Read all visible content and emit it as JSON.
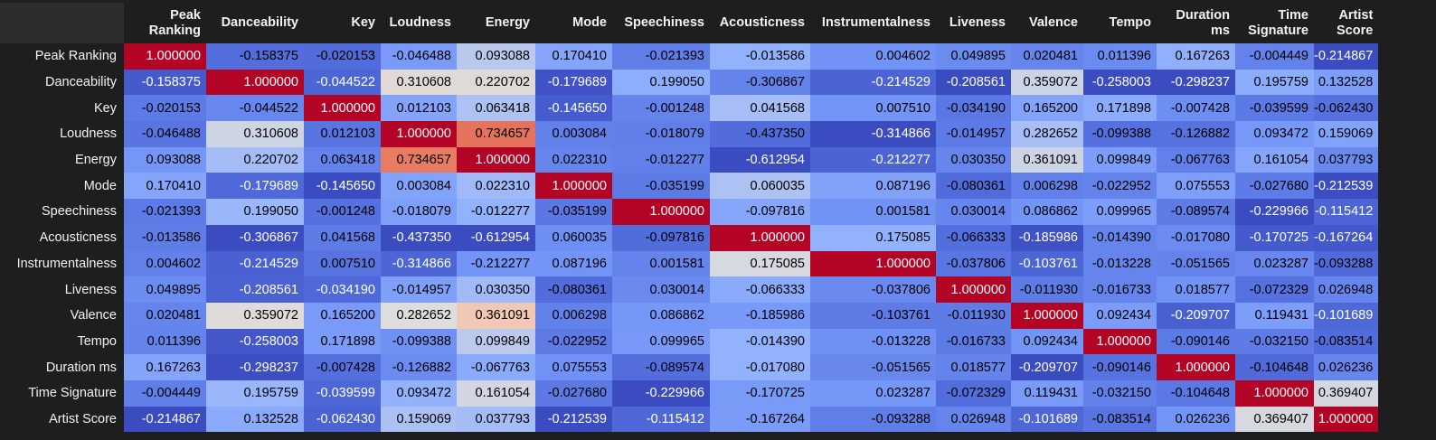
{
  "table": {
    "columns": [
      "Peak Ranking",
      "Danceability",
      "Key",
      "Loudness",
      "Energy",
      "Mode",
      "Speechiness",
      "Acousticness",
      "Instrumentalness",
      "Liveness",
      "Valence",
      "Tempo",
      "Duration ms",
      "Time Signature",
      "Artist Score"
    ],
    "rows": [
      {
        "label": "Peak Ranking",
        "values": [
          "1.000000",
          "-0.158375",
          "-0.020153",
          "-0.046488",
          "0.093088",
          "0.170410",
          "-0.021393",
          "-0.013586",
          "0.004602",
          "0.049895",
          "0.020481",
          "0.011396",
          "0.167263",
          "-0.004449",
          "-0.214867"
        ]
      },
      {
        "label": "Danceability",
        "values": [
          "-0.158375",
          "1.000000",
          "-0.044522",
          "0.310608",
          "0.220702",
          "-0.179689",
          "0.199050",
          "-0.306867",
          "-0.214529",
          "-0.208561",
          "0.359072",
          "-0.258003",
          "-0.298237",
          "0.195759",
          "0.132528"
        ]
      },
      {
        "label": "Key",
        "values": [
          "-0.020153",
          "-0.044522",
          "1.000000",
          "0.012103",
          "0.063418",
          "-0.145650",
          "-0.001248",
          "0.041568",
          "0.007510",
          "-0.034190",
          "0.165200",
          "0.171898",
          "-0.007428",
          "-0.039599",
          "-0.062430"
        ]
      },
      {
        "label": "Loudness",
        "values": [
          "-0.046488",
          "0.310608",
          "0.012103",
          "1.000000",
          "0.734657",
          "0.003084",
          "-0.018079",
          "-0.437350",
          "-0.314866",
          "-0.014957",
          "0.282652",
          "-0.099388",
          "-0.126882",
          "0.093472",
          "0.159069"
        ]
      },
      {
        "label": "Energy",
        "values": [
          "0.093088",
          "0.220702",
          "0.063418",
          "0.734657",
          "1.000000",
          "0.022310",
          "-0.012277",
          "-0.612954",
          "-0.212277",
          "0.030350",
          "0.361091",
          "0.099849",
          "-0.067763",
          "0.161054",
          "0.037793"
        ]
      },
      {
        "label": "Mode",
        "values": [
          "0.170410",
          "-0.179689",
          "-0.145650",
          "0.003084",
          "0.022310",
          "1.000000",
          "-0.035199",
          "0.060035",
          "0.087196",
          "-0.080361",
          "0.006298",
          "-0.022952",
          "0.075553",
          "-0.027680",
          "-0.212539"
        ]
      },
      {
        "label": "Speechiness",
        "values": [
          "-0.021393",
          "0.199050",
          "-0.001248",
          "-0.018079",
          "-0.012277",
          "-0.035199",
          "1.000000",
          "-0.097816",
          "0.001581",
          "0.030014",
          "0.086862",
          "0.099965",
          "-0.089574",
          "-0.229966",
          "-0.115412"
        ]
      },
      {
        "label": "Acousticness",
        "values": [
          "-0.013586",
          "-0.306867",
          "0.041568",
          "-0.437350",
          "-0.612954",
          "0.060035",
          "-0.097816",
          "1.000000",
          "0.175085",
          "-0.066333",
          "-0.185986",
          "-0.014390",
          "-0.017080",
          "-0.170725",
          "-0.167264"
        ]
      },
      {
        "label": "Instrumentalness",
        "values": [
          "0.004602",
          "-0.214529",
          "0.007510",
          "-0.314866",
          "-0.212277",
          "0.087196",
          "0.001581",
          "0.175085",
          "1.000000",
          "-0.037806",
          "-0.103761",
          "-0.013228",
          "-0.051565",
          "0.023287",
          "-0.093288"
        ]
      },
      {
        "label": "Liveness",
        "values": [
          "0.049895",
          "-0.208561",
          "-0.034190",
          "-0.014957",
          "0.030350",
          "-0.080361",
          "0.030014",
          "-0.066333",
          "-0.037806",
          "1.000000",
          "-0.011930",
          "-0.016733",
          "0.018577",
          "-0.072329",
          "0.026948"
        ]
      },
      {
        "label": "Valence",
        "values": [
          "0.020481",
          "0.359072",
          "0.165200",
          "0.282652",
          "0.361091",
          "0.006298",
          "0.086862",
          "-0.185986",
          "-0.103761",
          "-0.011930",
          "1.000000",
          "0.092434",
          "-0.209707",
          "0.119431",
          "-0.101689"
        ]
      },
      {
        "label": "Tempo",
        "values": [
          "0.011396",
          "-0.258003",
          "0.171898",
          "-0.099388",
          "0.099849",
          "-0.022952",
          "0.099965",
          "-0.014390",
          "-0.013228",
          "-0.016733",
          "0.092434",
          "1.000000",
          "-0.090146",
          "-0.032150",
          "-0.083514"
        ]
      },
      {
        "label": "Duration ms",
        "values": [
          "0.167263",
          "-0.298237",
          "-0.007428",
          "-0.126882",
          "-0.067763",
          "0.075553",
          "-0.089574",
          "-0.017080",
          "-0.051565",
          "0.018577",
          "-0.209707",
          "-0.090146",
          "1.000000",
          "-0.104648",
          "0.026236"
        ]
      },
      {
        "label": "Time Signature",
        "values": [
          "-0.004449",
          "0.195759",
          "-0.039599",
          "0.093472",
          "0.161054",
          "-0.027680",
          "-0.229966",
          "-0.170725",
          "0.023287",
          "-0.072329",
          "0.119431",
          "-0.032150",
          "-0.104648",
          "1.000000",
          "0.369407"
        ]
      },
      {
        "label": "Artist Score",
        "values": [
          "-0.214867",
          "0.132528",
          "-0.062430",
          "0.159069",
          "0.037793",
          "-0.212539",
          "-0.115412",
          "-0.167264",
          "-0.093288",
          "0.026948",
          "-0.101689",
          "-0.083514",
          "0.026236",
          "0.369407",
          "1.000000"
        ]
      }
    ]
  },
  "colors": {
    "background": "#1e1e1e",
    "header_text": "#f2f2f2",
    "colormap": "coolwarm"
  }
}
